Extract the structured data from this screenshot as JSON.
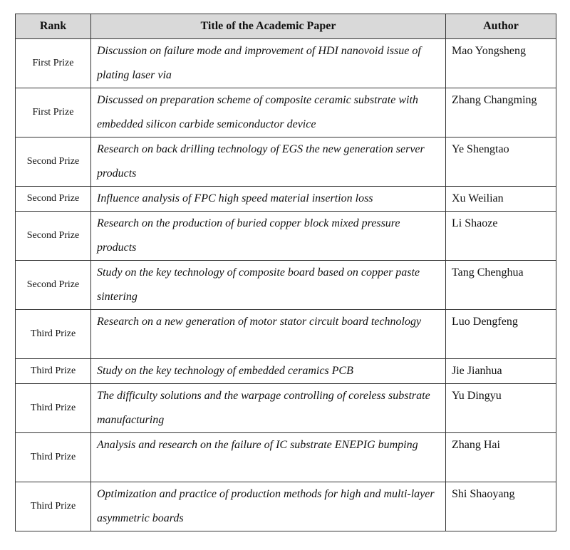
{
  "headers": {
    "rank": "Rank",
    "title": "Title of the Academic Paper",
    "author": "Author"
  },
  "rows": [
    {
      "rank": "First Prize",
      "title": "Discussion on failure mode and improvement of HDI nanovoid issue of plating laser via",
      "author": "Mao Yongsheng"
    },
    {
      "rank": "First Prize",
      "title": "Discussed on preparation scheme of composite ceramic substrate with embedded silicon carbide semiconductor device",
      "author": "Zhang Changming"
    },
    {
      "rank": "Second Prize",
      "title": "Research on back drilling technology of EGS the new generation server products",
      "author": "Ye Shengtao"
    },
    {
      "rank": "Second Prize",
      "title": "Influence analysis of FPC high speed material insertion loss",
      "author": "Xu Weilian"
    },
    {
      "rank": "Second Prize",
      "title": "Research on the production of buried copper block mixed pressure products",
      "author": "Li Shaoze"
    },
    {
      "rank": "Second Prize",
      "title": "Study on the key technology of composite board based on copper paste sintering",
      "author": "Tang Chenghua"
    },
    {
      "rank": "Third Prize",
      "title": "Research on a new generation of motor stator circuit board technology",
      "author": "Luo Dengfeng"
    },
    {
      "rank": "Third Prize",
      "title": "Study on the key technology of embedded ceramics PCB",
      "author": "Jie Jianhua"
    },
    {
      "rank": "Third Prize",
      "title": "The difficulty solutions and the warpage controlling of coreless substrate manufacturing",
      "author": "Yu Dingyu"
    },
    {
      "rank": "Third Prize",
      "title": "Analysis and research on the failure of IC substrate ENEPIG bumping",
      "author": "Zhang Hai"
    },
    {
      "rank": "Third Prize",
      "title": "Optimization and practice of production methods for high and multi-layer asymmetric boards",
      "author": "Shi Shaoyang"
    }
  ]
}
